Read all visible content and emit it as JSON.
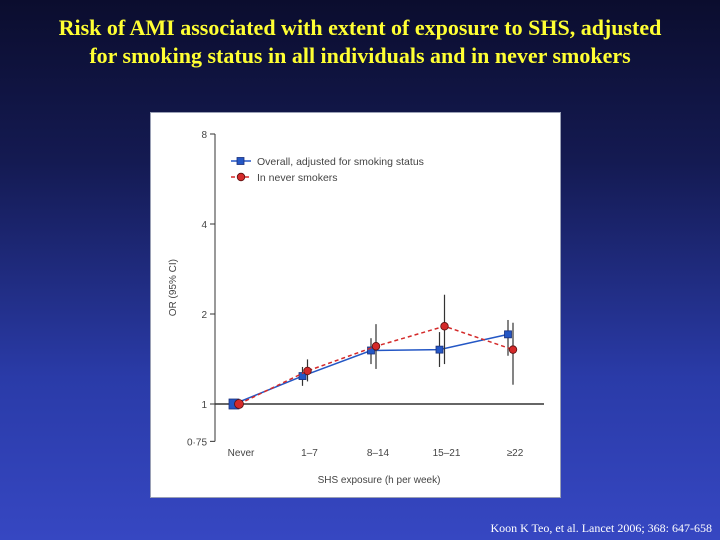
{
  "slide": {
    "title_line1": "Risk of AMI associated with extent of exposure to SHS, adjusted",
    "title_line2": "for smoking status in all individuals and in never smokers",
    "citation": "Koon K Teo, et al. Lancet 2006; 368: 647-658"
  },
  "chart_data": {
    "type": "line",
    "xlabel": "SHS exposure (h per week)",
    "ylabel": "OR (95% CI)",
    "y_scale": "log",
    "ylim": [
      0.75,
      8
    ],
    "yticks": [
      {
        "value": 0.75,
        "label": "0·75"
      },
      {
        "value": 1,
        "label": "1"
      },
      {
        "value": 2,
        "label": "2"
      },
      {
        "value": 4,
        "label": "4"
      },
      {
        "value": 8,
        "label": "8"
      }
    ],
    "categories": [
      "Never",
      "1–7",
      "8–14",
      "15–21",
      "≥22"
    ],
    "reference_line": 1,
    "legend_position": "top-left",
    "series": [
      {
        "name": "Overall, adjusted for smoking status",
        "color": "#2457c5",
        "marker": "square",
        "line_style": "solid",
        "values": [
          1.0,
          1.24,
          1.51,
          1.52,
          1.71
        ],
        "ci_low": [
          1.0,
          1.15,
          1.36,
          1.33,
          1.45
        ],
        "ci_high": [
          1.0,
          1.33,
          1.66,
          1.74,
          1.91
        ]
      },
      {
        "name": "In never smokers",
        "color": "#d42a2a",
        "marker": "circle",
        "line_style": "dashed",
        "values": [
          1.0,
          1.29,
          1.56,
          1.82,
          1.52
        ],
        "ci_low": [
          1.0,
          1.19,
          1.31,
          1.36,
          1.16
        ],
        "ci_high": [
          1.0,
          1.41,
          1.85,
          2.32,
          1.87
        ]
      }
    ]
  }
}
